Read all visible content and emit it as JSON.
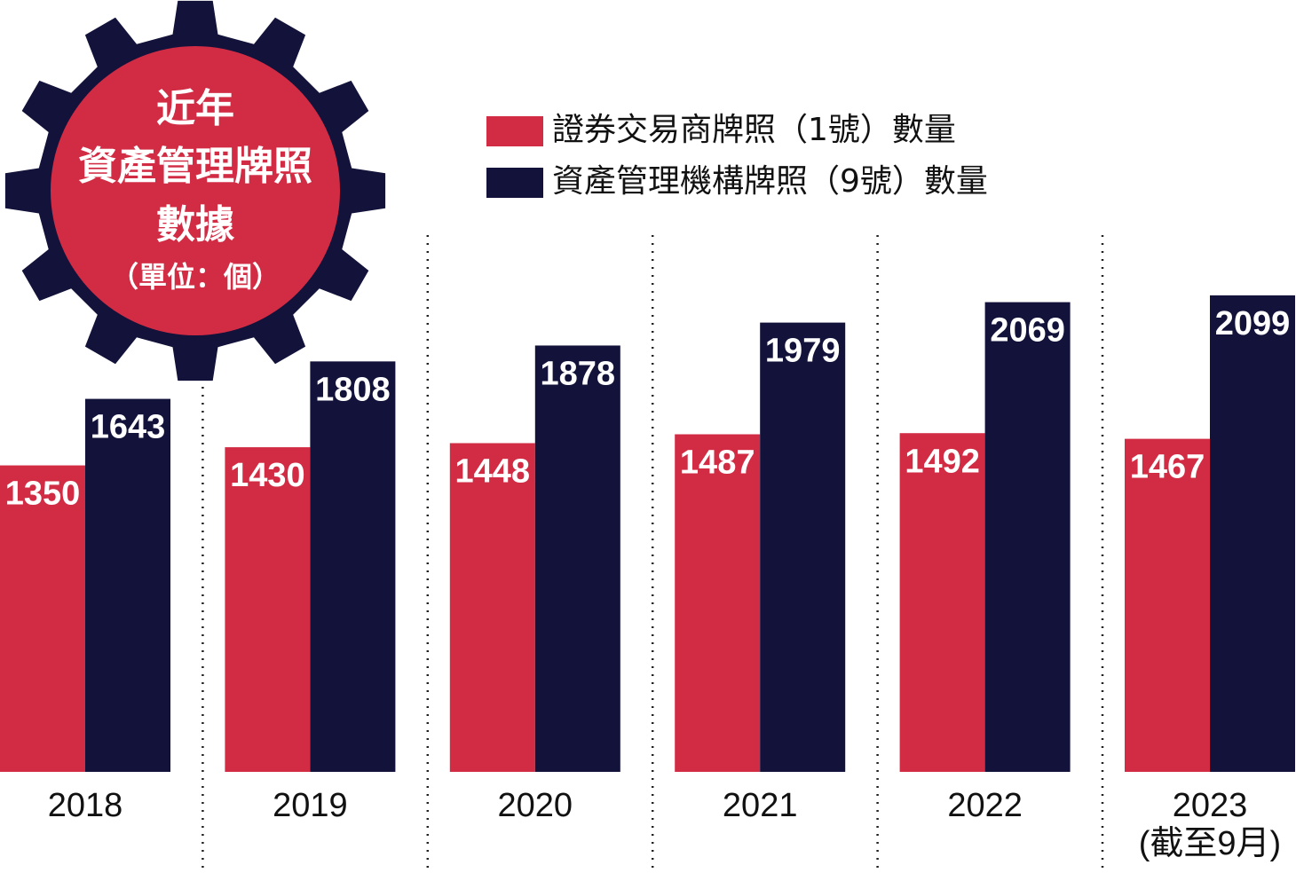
{
  "chart_data": {
    "type": "bar",
    "title": [
      "近年",
      "資產管理牌照",
      "數據"
    ],
    "subtitle": "（單位：個）",
    "categories": [
      "2018",
      "2019",
      "2020",
      "2021",
      "2022",
      "2023"
    ],
    "x_note": "(截至9月)",
    "series": [
      {
        "name": "證券交易商牌照（1號）數量",
        "color": "#d22c45",
        "values": [
          1350,
          1430,
          1448,
          1487,
          1492,
          1467
        ]
      },
      {
        "name": "資產管理機構牌照（9號）數量",
        "color": "#12123a",
        "values": [
          1643,
          1808,
          1878,
          1979,
          2069,
          2099
        ]
      }
    ],
    "ylim": [
      0,
      3400
    ]
  }
}
